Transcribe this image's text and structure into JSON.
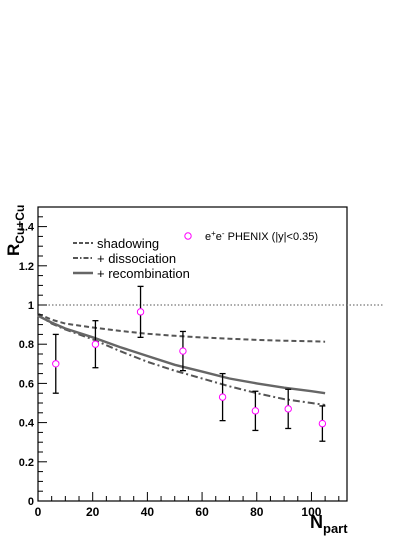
{
  "chart_data": {
    "type": "line",
    "xlabel": "N",
    "xlabel_sub": "part",
    "ylabel": "R",
    "ylabel_sub": "Cu+Cu",
    "xlim": [
      0,
      113
    ],
    "ylim": [
      0,
      1.5
    ],
    "x_ticks": [
      0,
      20,
      40,
      60,
      80,
      100
    ],
    "y_ticks": [
      0,
      0.2,
      0.4,
      0.6,
      0.8,
      1,
      1.2,
      1.4
    ],
    "x_tick_labels": [
      "0",
      "20",
      "40",
      "60",
      "80",
      "100"
    ],
    "y_tick_labels": [
      "0",
      "0.2",
      "0.4",
      "0.6",
      "0.8",
      "1",
      "1.2",
      "1.4"
    ],
    "reference_line": {
      "y": 1.0,
      "style": "dotted",
      "color": "#555555"
    },
    "series": [
      {
        "name": "shadowing",
        "style": "dashed",
        "color": "#555555",
        "x": [
          0,
          5,
          10,
          20,
          30,
          40,
          50,
          60,
          70,
          80,
          90,
          100,
          105
        ],
        "y": [
          0.955,
          0.925,
          0.905,
          0.885,
          0.868,
          0.853,
          0.843,
          0.834,
          0.828,
          0.822,
          0.818,
          0.815,
          0.813
        ]
      },
      {
        "name": "+ dissociation",
        "style": "dashdot",
        "color": "#555555",
        "x": [
          0,
          5,
          10,
          20,
          30,
          40,
          50,
          60,
          70,
          80,
          90,
          100,
          105
        ],
        "y": [
          0.95,
          0.905,
          0.875,
          0.825,
          0.765,
          0.71,
          0.665,
          0.625,
          0.585,
          0.55,
          0.52,
          0.5,
          0.49
        ]
      },
      {
        "name": "+ recombination",
        "style": "solid",
        "color": "#666666",
        "x": [
          0,
          5,
          10,
          20,
          30,
          40,
          50,
          60,
          70,
          80,
          90,
          100,
          105
        ],
        "y": [
          0.945,
          0.91,
          0.88,
          0.835,
          0.785,
          0.74,
          0.695,
          0.66,
          0.625,
          0.6,
          0.578,
          0.56,
          0.55
        ]
      }
    ],
    "data_points": {
      "name": "e+e- PHENIX (|y|<0.35)",
      "label_main": "e",
      "label_sup1": "+",
      "label_mid": "e",
      "label_sup2": "-",
      "label_rest": " PHENIX (|y|<0.35)",
      "color": "#ff00ff",
      "marker": "open-circle",
      "x": [
        6.5,
        21,
        37.5,
        53,
        67.5,
        79.5,
        91.5,
        104
      ],
      "y": [
        0.7,
        0.8,
        0.965,
        0.765,
        0.53,
        0.46,
        0.47,
        0.395
      ],
      "err": [
        0.15,
        0.12,
        0.13,
        0.1,
        0.12,
        0.1,
        0.1,
        0.09
      ]
    }
  }
}
